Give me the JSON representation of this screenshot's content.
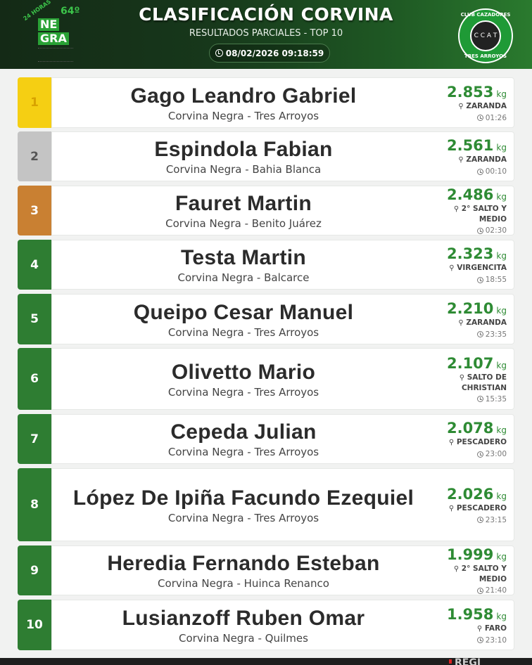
{
  "header": {
    "title": "CLASIFICACIÓN CORVINA",
    "subtitle": "RESULTADOS PARCIALES - TOP 10",
    "datetime": "08/02/2026 09:18:59",
    "left_logo": {
      "hours": "24 HORAS",
      "edition": "64º",
      "line1": "NE",
      "line2": "GRA"
    },
    "right_logo": {
      "ring_top": "CLUB CAZADORES",
      "ring_bottom": "TRES ARROYOS",
      "center": "C C A T"
    }
  },
  "colors": {
    "gold": "#f5cf13",
    "silver": "#c4c4c4",
    "bronze": "#c98032",
    "green": "#2e7d32",
    "weight": "#2e8b34"
  },
  "rows": [
    {
      "rank": "1",
      "name": "Gago Leandro Gabriel",
      "sub": "Corvina Negra - Tres Arroyos",
      "weight": "2.853",
      "unit": "kg",
      "place": "ZARANDA",
      "time": "01:26"
    },
    {
      "rank": "2",
      "name": "Espindola Fabian",
      "sub": "Corvina Negra - Bahia Blanca",
      "weight": "2.561",
      "unit": "kg",
      "place": "ZARANDA",
      "time": "00:10"
    },
    {
      "rank": "3",
      "name": "Fauret Martin",
      "sub": "Corvina Negra - Benito Juárez",
      "weight": "2.486",
      "unit": "kg",
      "place": "2° SALTO Y MEDIO",
      "time": "02:30"
    },
    {
      "rank": "4",
      "name": "Testa Martin",
      "sub": "Corvina Negra - Balcarce",
      "weight": "2.323",
      "unit": "kg",
      "place": "VIRGENCITA",
      "time": "18:55"
    },
    {
      "rank": "5",
      "name": "Queipo Cesar Manuel",
      "sub": "Corvina Negra - Tres Arroyos",
      "weight": "2.210",
      "unit": "kg",
      "place": "ZARANDA",
      "time": "23:35"
    },
    {
      "rank": "6",
      "name": "Olivetto Mario",
      "sub": "Corvina Negra - Tres Arroyos",
      "weight": "2.107",
      "unit": "kg",
      "place": "SALTO DE CHRISTIAN",
      "time": "15:35"
    },
    {
      "rank": "7",
      "name": "Cepeda Julian",
      "sub": "Corvina Negra - Tres Arroyos",
      "weight": "2.078",
      "unit": "kg",
      "place": "PESCADERO",
      "time": "23:00"
    },
    {
      "rank": "8",
      "name": "López De Ipiña Facundo Ezequiel",
      "sub": "Corvina Negra - Tres Arroyos",
      "weight": "2.026",
      "unit": "kg",
      "place": "PESCADERO",
      "time": "23:15"
    },
    {
      "rank": "9",
      "name": "Heredia Fernando Esteban",
      "sub": "Corvina Negra - Huinca Renanco",
      "weight": "1.999",
      "unit": "kg",
      "place": "2° SALTO Y MEDIO",
      "time": "21:40"
    },
    {
      "rank": "10",
      "name": "Lusianzoff Ruben Omar",
      "sub": "Corvina Negra - Quilmes",
      "weight": "1.958",
      "unit": "kg",
      "place": "FARO",
      "time": "23:10"
    }
  ],
  "footer": {
    "partial_text": "REGI"
  }
}
